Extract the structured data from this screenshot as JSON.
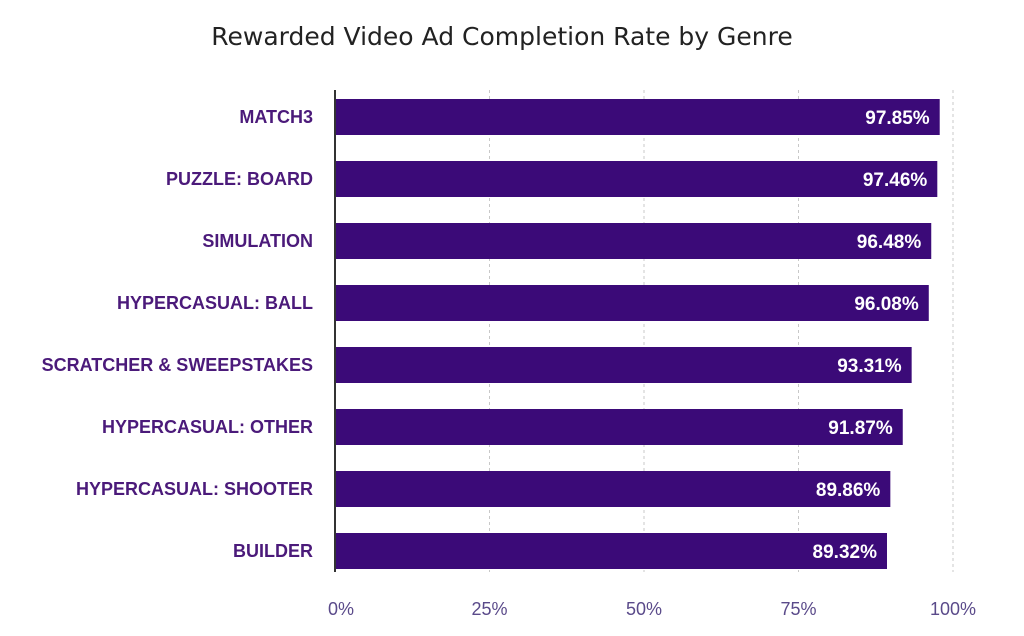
{
  "chart_data": {
    "type": "bar",
    "orientation": "horizontal",
    "title": "Rewarded Video Ad Completion Rate by Genre",
    "xlabel": "",
    "ylabel": "",
    "categories": [
      "MATCH3",
      "PUZZLE: BOARD",
      "SIMULATION",
      "HYPERCASUAL: BALL",
      "SCRATCHER & SWEEPSTAKES",
      "HYPERCASUAL: OTHER",
      "HYPERCASUAL: SHOOTER",
      "BUILDER"
    ],
    "values": [
      97.85,
      97.46,
      96.48,
      96.08,
      93.31,
      91.87,
      89.86,
      89.32
    ],
    "value_labels": [
      "97.85%",
      "97.46%",
      "96.48%",
      "96.08%",
      "93.31%",
      "91.87%",
      "89.86%",
      "89.32%"
    ],
    "xlim": [
      0,
      100
    ],
    "x_ticks": [
      0,
      25,
      50,
      75,
      100
    ],
    "x_tick_labels": [
      "0%",
      "25%",
      "50%",
      "75%",
      "100%"
    ],
    "grid": "vertical dashed",
    "legend": "none",
    "colors": {
      "bar": "#3b0a78",
      "category_label": "#4b1a7a",
      "tick_label": "#5a4a8a",
      "value_label": "#ffffff",
      "title": "#222222"
    }
  }
}
